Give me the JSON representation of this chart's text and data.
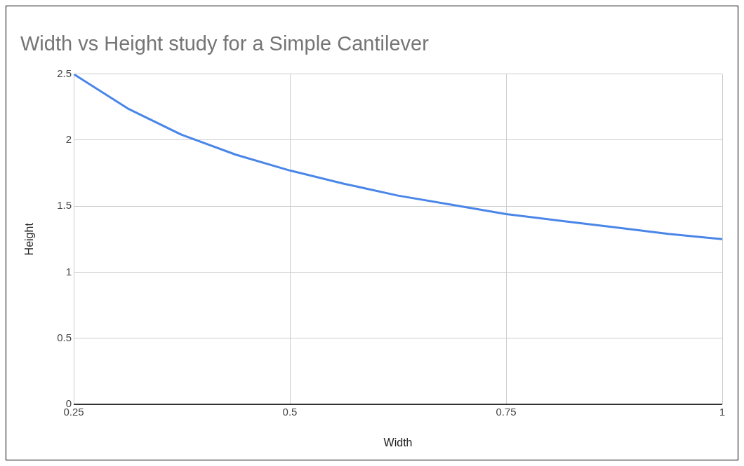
{
  "chart_data": {
    "type": "line",
    "title": "Width vs Height study for a Simple Cantilever",
    "xlabel": "Width",
    "ylabel": "Height",
    "x": [
      0.25,
      0.3125,
      0.375,
      0.4375,
      0.5,
      0.5625,
      0.625,
      0.6875,
      0.75,
      0.8125,
      0.875,
      0.9375,
      1
    ],
    "series": [
      {
        "color": "#4a86e8",
        "values": [
          2.5,
          2.24,
          2.04,
          1.89,
          1.77,
          1.67,
          1.58,
          1.51,
          1.44,
          1.39,
          1.34,
          1.29,
          1.25
        ]
      }
    ],
    "xlim": [
      0.25,
      1
    ],
    "xticks": [
      0.25,
      0.5,
      0.75,
      1
    ],
    "ylim": [
      0,
      2.5
    ],
    "yticks": [
      0,
      0.5,
      1,
      1.5,
      2,
      2.5
    ],
    "grid": true,
    "legend": false,
    "marker": "none",
    "line_style": "solid"
  }
}
